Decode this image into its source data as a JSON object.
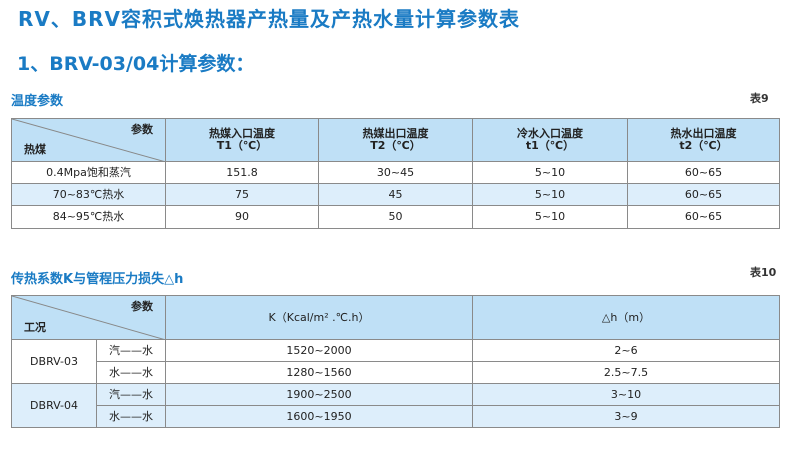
{
  "title": "RV、BRV容积式焕热器产热量及产热水量计算参数表",
  "subtitle": "1、BRV-03/04计算参数：",
  "table9": {
    "section_title": "温度参数",
    "tag": "表9",
    "corner_top": "参数",
    "corner_bottom": "热煤",
    "headers": [
      {
        "line1": "热媒入口温度",
        "line2": "T1（℃）"
      },
      {
        "line1": "热媒出口温度",
        "line2": "T2（℃）"
      },
      {
        "line1": "冷水入口温度",
        "line2": "t1（℃）"
      },
      {
        "line1": "热水出口温度",
        "line2": "t2（℃）"
      }
    ],
    "rows": [
      [
        "0.4Mpa饱和蒸汽",
        "151.8",
        "30~45",
        "5~10",
        "60~65"
      ],
      [
        "70~83℃热水",
        "75",
        "45",
        "5~10",
        "60~65"
      ],
      [
        "84~95℃热水",
        "90",
        "50",
        "5~10",
        "60~65"
      ]
    ]
  },
  "table10": {
    "section_title": "传热系数K与管程压力损失△h",
    "tag": "表10",
    "corner_top": "参数",
    "corner_bottom": "工况",
    "headers": [
      "K（Kcal/m² .℃.h）",
      "△h（m）"
    ],
    "groups": [
      {
        "name": "DBRV-03",
        "rows": [
          [
            "汽——水",
            "1520~2000",
            "2~6"
          ],
          [
            "水——水",
            "1280~1560",
            "2.5~7.5"
          ]
        ]
      },
      {
        "name": "DBRV-04",
        "rows": [
          [
            "汽——水",
            "1900~2500",
            "3~10"
          ],
          [
            "水——水",
            "1600~1950",
            "3~9"
          ]
        ]
      }
    ]
  }
}
